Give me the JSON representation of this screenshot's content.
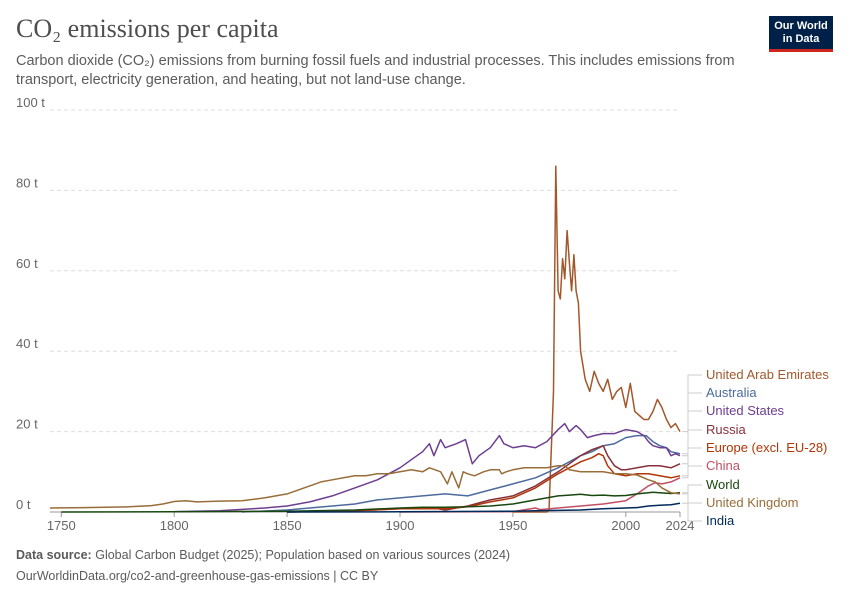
{
  "header": {
    "title": "CO₂ emissions per capita",
    "subtitle": "Carbon dioxide (CO₂) emissions from burning fossil fuels and industrial processes. This includes emissions from transport, electricity generation, and heating, but not land-use change.",
    "logo_line1": "Our World",
    "logo_line2": "in Data"
  },
  "footer": {
    "source_label": "Data source:",
    "source_text": "Global Carbon Budget (2025); Population based on various sources (2024)",
    "url_text": "OurWorldinData.org/co2-and-greenhouse-gas-emissions | CC BY"
  },
  "chart_data": {
    "type": "line",
    "title": "CO₂ emissions per capita",
    "xlim": [
      1745,
      2024
    ],
    "ylim": [
      0,
      100
    ],
    "x_ticks": [
      1750,
      1800,
      1850,
      1900,
      1950,
      2000,
      2024
    ],
    "x_tick_labels": [
      "1750",
      "1800",
      "1850",
      "1900",
      "1950",
      "2000",
      "2024"
    ],
    "y_ticks": [
      0,
      20,
      40,
      60,
      80,
      100
    ],
    "y_tick_labels": [
      "0 t",
      "20 t",
      "40 t",
      "60 t",
      "80 t",
      "100 t"
    ],
    "grid": true,
    "legend_placement": "right",
    "series": [
      {
        "name": "United Arab Emirates",
        "color": "#a2582c",
        "points": [
          [
            1950,
            0
          ],
          [
            1965,
            0
          ],
          [
            1966,
            0.5
          ],
          [
            1968,
            30
          ],
          [
            1969,
            86
          ],
          [
            1970,
            55
          ],
          [
            1971,
            53
          ],
          [
            1972,
            63
          ],
          [
            1973,
            58
          ],
          [
            1974,
            70
          ],
          [
            1975,
            62
          ],
          [
            1976,
            55
          ],
          [
            1977,
            64
          ],
          [
            1978,
            55
          ],
          [
            1979,
            52
          ],
          [
            1980,
            40
          ],
          [
            1982,
            33
          ],
          [
            1984,
            30
          ],
          [
            1986,
            35
          ],
          [
            1988,
            32
          ],
          [
            1990,
            30
          ],
          [
            1992,
            33
          ],
          [
            1994,
            28
          ],
          [
            1996,
            30
          ],
          [
            1998,
            31
          ],
          [
            2000,
            26
          ],
          [
            2002,
            32
          ],
          [
            2004,
            25
          ],
          [
            2006,
            24
          ],
          [
            2008,
            23
          ],
          [
            2010,
            23
          ],
          [
            2012,
            25
          ],
          [
            2014,
            28
          ],
          [
            2016,
            26
          ],
          [
            2018,
            23
          ],
          [
            2020,
            21
          ],
          [
            2022,
            22
          ],
          [
            2024,
            20
          ]
        ]
      },
      {
        "name": "Australia",
        "color": "#4c6a9c",
        "points": [
          [
            1830,
            0
          ],
          [
            1850,
            0.5
          ],
          [
            1860,
            1
          ],
          [
            1870,
            1.5
          ],
          [
            1880,
            2
          ],
          [
            1890,
            3
          ],
          [
            1900,
            3.5
          ],
          [
            1910,
            4
          ],
          [
            1920,
            4.5
          ],
          [
            1930,
            4
          ],
          [
            1940,
            5.5
          ],
          [
            1950,
            7
          ],
          [
            1960,
            8.5
          ],
          [
            1970,
            11
          ],
          [
            1975,
            12.5
          ],
          [
            1980,
            14
          ],
          [
            1985,
            15
          ],
          [
            1990,
            16.5
          ],
          [
            1995,
            17
          ],
          [
            2000,
            18.5
          ],
          [
            2005,
            19
          ],
          [
            2009,
            19
          ],
          [
            2012,
            17.5
          ],
          [
            2015,
            16.5
          ],
          [
            2018,
            16
          ],
          [
            2020,
            15
          ],
          [
            2024,
            14.5
          ]
        ]
      },
      {
        "name": "United States",
        "color": "#6d3e91",
        "points": [
          [
            1800,
            0.1
          ],
          [
            1820,
            0.3
          ],
          [
            1840,
            1
          ],
          [
            1850,
            1.5
          ],
          [
            1860,
            2.5
          ],
          [
            1870,
            4
          ],
          [
            1880,
            6
          ],
          [
            1890,
            8
          ],
          [
            1900,
            11
          ],
          [
            1905,
            13
          ],
          [
            1910,
            15
          ],
          [
            1913,
            17
          ],
          [
            1915,
            14
          ],
          [
            1918,
            18
          ],
          [
            1920,
            16
          ],
          [
            1925,
            17
          ],
          [
            1929,
            18
          ],
          [
            1932,
            12
          ],
          [
            1935,
            14
          ],
          [
            1940,
            16
          ],
          [
            1944,
            19
          ],
          [
            1946,
            17
          ],
          [
            1950,
            16
          ],
          [
            1955,
            16.5
          ],
          [
            1960,
            16
          ],
          [
            1965,
            17.5
          ],
          [
            1970,
            20.5
          ],
          [
            1973,
            22
          ],
          [
            1975,
            20
          ],
          [
            1978,
            21.5
          ],
          [
            1980,
            20.5
          ],
          [
            1983,
            18.5
          ],
          [
            1986,
            19
          ],
          [
            1990,
            19.5
          ],
          [
            1995,
            19.5
          ],
          [
            2000,
            20.5
          ],
          [
            2005,
            20
          ],
          [
            2008,
            19
          ],
          [
            2010,
            17.5
          ],
          [
            2012,
            16.5
          ],
          [
            2015,
            16
          ],
          [
            2018,
            16
          ],
          [
            2020,
            14
          ],
          [
            2022,
            14.5
          ],
          [
            2024,
            14
          ]
        ]
      },
      {
        "name": "Russia",
        "color": "#883039",
        "points": [
          [
            1850,
            0
          ],
          [
            1880,
            0.3
          ],
          [
            1900,
            0.8
          ],
          [
            1913,
            1.2
          ],
          [
            1920,
            0.5
          ],
          [
            1930,
            1.5
          ],
          [
            1940,
            3
          ],
          [
            1950,
            4
          ],
          [
            1960,
            6.5
          ],
          [
            1970,
            10
          ],
          [
            1975,
            12
          ],
          [
            1980,
            14
          ],
          [
            1985,
            15.5
          ],
          [
            1990,
            16.5
          ],
          [
            1992,
            14
          ],
          [
            1995,
            11.5
          ],
          [
            1998,
            10.5
          ],
          [
            2000,
            10.5
          ],
          [
            2005,
            11
          ],
          [
            2010,
            11.5
          ],
          [
            2015,
            11.5
          ],
          [
            2020,
            11
          ],
          [
            2024,
            12
          ]
        ]
      },
      {
        "name": "Europe (excl. EU-28)",
        "color": "#b13507",
        "points": [
          [
            1850,
            0
          ],
          [
            1880,
            0.3
          ],
          [
            1900,
            0.8
          ],
          [
            1920,
            0.8
          ],
          [
            1930,
            1.3
          ],
          [
            1940,
            2.5
          ],
          [
            1950,
            3.5
          ],
          [
            1960,
            6
          ],
          [
            1970,
            9.5
          ],
          [
            1975,
            11
          ],
          [
            1980,
            12.5
          ],
          [
            1985,
            13.5
          ],
          [
            1988,
            14.5
          ],
          [
            1990,
            14
          ],
          [
            1992,
            11.5
          ],
          [
            1995,
            9.5
          ],
          [
            2000,
            9
          ],
          [
            2005,
            9.5
          ],
          [
            2010,
            9.5
          ],
          [
            2015,
            9
          ],
          [
            2020,
            8.5
          ],
          [
            2024,
            9
          ]
        ]
      },
      {
        "name": "China",
        "color": "#c15065",
        "points": [
          [
            1900,
            0
          ],
          [
            1950,
            0.1
          ],
          [
            1960,
            1
          ],
          [
            1962,
            0.6
          ],
          [
            1970,
            1
          ],
          [
            1980,
            1.5
          ],
          [
            1990,
            2
          ],
          [
            2000,
            2.8
          ],
          [
            2005,
            4.5
          ],
          [
            2010,
            6.5
          ],
          [
            2013,
            7.3
          ],
          [
            2016,
            7
          ],
          [
            2020,
            7.5
          ],
          [
            2024,
            8.5
          ]
        ]
      },
      {
        "name": "World",
        "color": "#18470f",
        "points": [
          [
            1750,
            0
          ],
          [
            1800,
            0.05
          ],
          [
            1850,
            0.2
          ],
          [
            1880,
            0.5
          ],
          [
            1900,
            1
          ],
          [
            1910,
            1.2
          ],
          [
            1920,
            1.2
          ],
          [
            1930,
            1.3
          ],
          [
            1940,
            1.5
          ],
          [
            1950,
            2
          ],
          [
            1960,
            3
          ],
          [
            1970,
            4
          ],
          [
            1975,
            4.2
          ],
          [
            1980,
            4.4
          ],
          [
            1985,
            4.1
          ],
          [
            1990,
            4.2
          ],
          [
            1995,
            4
          ],
          [
            2000,
            4.1
          ],
          [
            2005,
            4.5
          ],
          [
            2010,
            4.8
          ],
          [
            2012,
            4.9
          ],
          [
            2015,
            4.8
          ],
          [
            2020,
            4.6
          ],
          [
            2024,
            4.8
          ]
        ]
      },
      {
        "name": "United Kingdom",
        "color": "#996d39",
        "points": [
          [
            1745,
            1
          ],
          [
            1760,
            1.1
          ],
          [
            1780,
            1.3
          ],
          [
            1790,
            1.6
          ],
          [
            1795,
            2
          ],
          [
            1800,
            2.6
          ],
          [
            1805,
            2.8
          ],
          [
            1810,
            2.5
          ],
          [
            1815,
            2.6
          ],
          [
            1820,
            2.7
          ],
          [
            1830,
            2.8
          ],
          [
            1840,
            3.5
          ],
          [
            1850,
            4.5
          ],
          [
            1855,
            5.5
          ],
          [
            1860,
            6.5
          ],
          [
            1865,
            7.5
          ],
          [
            1870,
            8
          ],
          [
            1875,
            8.5
          ],
          [
            1880,
            9
          ],
          [
            1885,
            9
          ],
          [
            1890,
            9.5
          ],
          [
            1895,
            9.5
          ],
          [
            1900,
            10
          ],
          [
            1905,
            10.5
          ],
          [
            1910,
            10
          ],
          [
            1913,
            11
          ],
          [
            1918,
            10
          ],
          [
            1921,
            7
          ],
          [
            1923,
            10
          ],
          [
            1926,
            6
          ],
          [
            1928,
            10
          ],
          [
            1930,
            9.5
          ],
          [
            1933,
            9
          ],
          [
            1937,
            10
          ],
          [
            1940,
            10.5
          ],
          [
            1944,
            10.5
          ],
          [
            1945,
            9.5
          ],
          [
            1947,
            10
          ],
          [
            1950,
            10.5
          ],
          [
            1955,
            11
          ],
          [
            1960,
            11
          ],
          [
            1965,
            11
          ],
          [
            1970,
            11.5
          ],
          [
            1973,
            11.5
          ],
          [
            1975,
            10.5
          ],
          [
            1980,
            10
          ],
          [
            1985,
            10
          ],
          [
            1990,
            10
          ],
          [
            1995,
            9.5
          ],
          [
            2000,
            9.5
          ],
          [
            2005,
            9.2
          ],
          [
            2010,
            8
          ],
          [
            2013,
            7.5
          ],
          [
            2016,
            6
          ],
          [
            2020,
            4.8
          ],
          [
            2024,
            4.5
          ]
        ]
      },
      {
        "name": "India",
        "color": "#00295b",
        "points": [
          [
            1850,
            0
          ],
          [
            1900,
            0.05
          ],
          [
            1950,
            0.2
          ],
          [
            1960,
            0.3
          ],
          [
            1970,
            0.4
          ],
          [
            1980,
            0.5
          ],
          [
            1990,
            0.8
          ],
          [
            2000,
            1
          ],
          [
            2005,
            1.1
          ],
          [
            2010,
            1.5
          ],
          [
            2015,
            1.7
          ],
          [
            2020,
            1.8
          ],
          [
            2024,
            2.2
          ]
        ]
      }
    ],
    "legend_entries": [
      "United Arab Emirates",
      "Australia",
      "United States",
      "Russia",
      "Europe (excl. EU-28)",
      "China",
      "World",
      "United Kingdom",
      "India"
    ]
  }
}
